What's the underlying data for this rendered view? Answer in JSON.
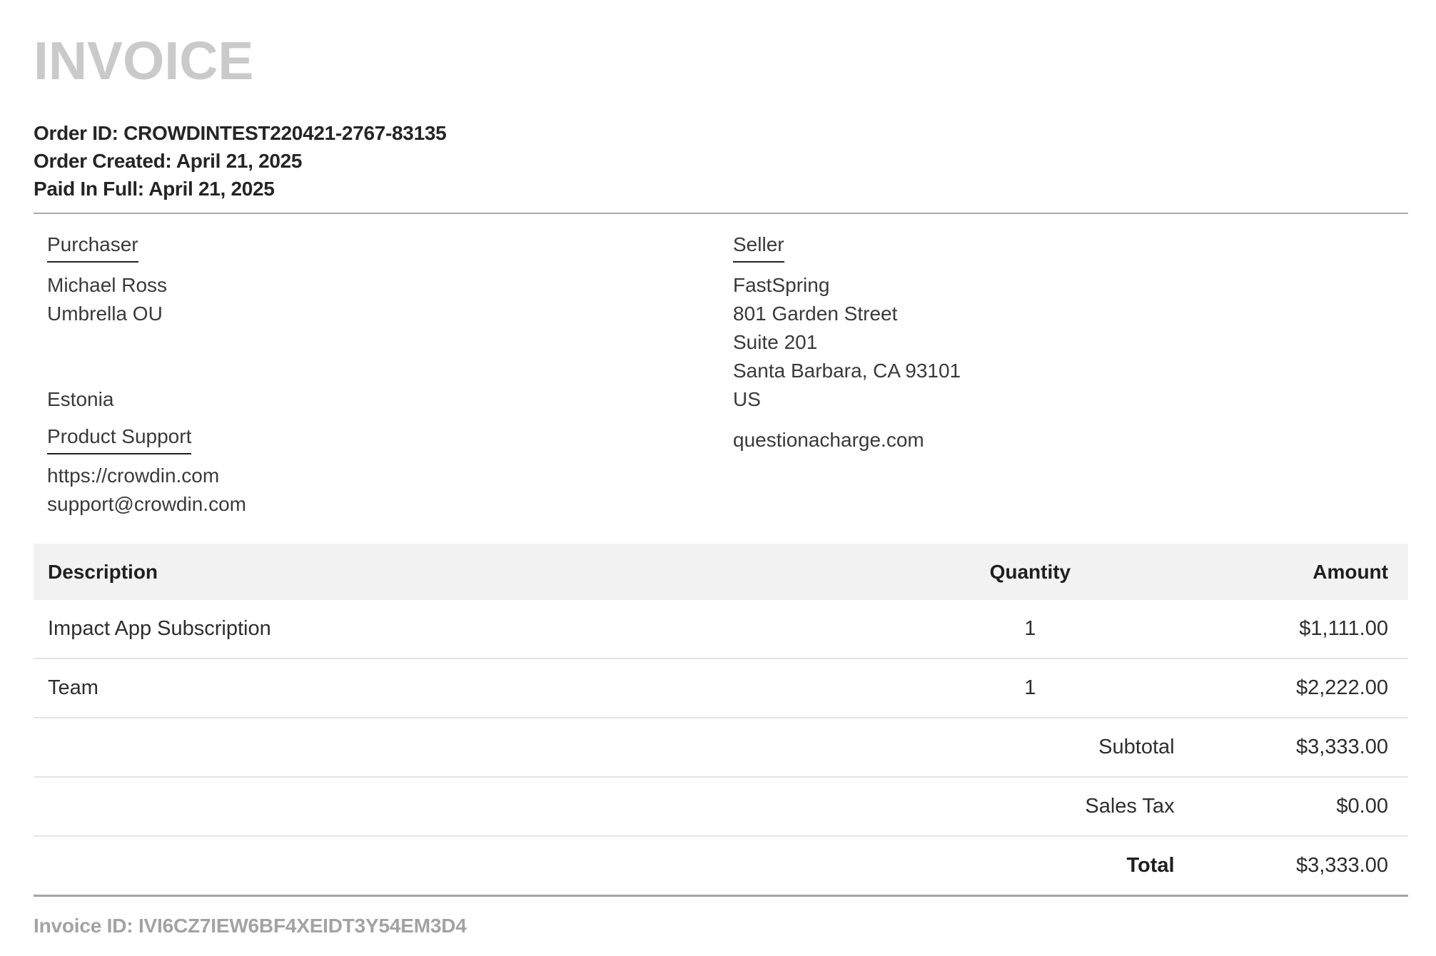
{
  "header": {
    "title": "INVOICE",
    "meta_lines": [
      "Order ID: CROWDINTEST220421-2767-83135",
      "Order Created: April 21, 2025",
      "Paid In Full: April 21, 2025"
    ]
  },
  "purchaser": {
    "heading": "Purchaser",
    "name": "Michael Ross",
    "company": "Umbrella OU",
    "country": "Estonia",
    "support": {
      "heading": "Product Support",
      "url": "https://crowdin.com",
      "email": "support@crowdin.com"
    }
  },
  "seller": {
    "heading": "Seller",
    "name": "FastSpring",
    "address_line1": "801 Garden Street",
    "address_line2": "Suite 201",
    "city_line": "Santa Barbara, CA 93101",
    "country": "US",
    "website": "questionacharge.com"
  },
  "table": {
    "headers": {
      "description": "Description",
      "quantity": "Quantity",
      "amount": "Amount"
    },
    "items": [
      {
        "description": "Impact App Subscription",
        "quantity": "1",
        "amount": "$1,111.00"
      },
      {
        "description": "Team",
        "quantity": "1",
        "amount": "$2,222.00"
      }
    ],
    "totals": [
      {
        "label": "Subtotal",
        "amount": "$3,333.00"
      },
      {
        "label": "Sales Tax",
        "amount": "$0.00"
      },
      {
        "label": "Total",
        "amount": "$3,333.00"
      }
    ]
  },
  "footer": {
    "invoice_id_line": "Invoice ID: IVI6CZ7IEW6BF4XEIDT3Y54EM3D4"
  },
  "colors": {
    "title_gray": "#cacaca",
    "text_dark": "#252525",
    "text_body": "#3a3a3a",
    "table_header_band": "#f2f2f2",
    "divider_light": "#e4e4e4",
    "divider_strong": "#a9a9a9",
    "invoice_id_gray": "#a3a3a3"
  }
}
